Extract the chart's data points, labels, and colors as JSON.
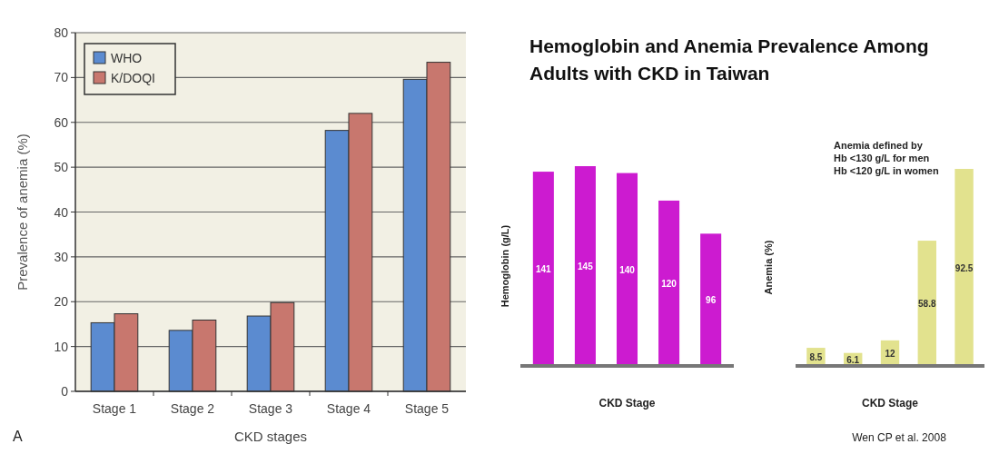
{
  "chart_data": [
    {
      "type": "bar",
      "categories": [
        "Stage 1",
        "Stage 2",
        "Stage 3",
        "Stage 4",
        "Stage 5"
      ],
      "xlabel": "CKD stages",
      "ylabel": "Prevalence of anemia (%)",
      "ylim": [
        0,
        80
      ],
      "yticks": [
        0,
        10,
        20,
        30,
        40,
        50,
        60,
        70,
        80
      ],
      "grid": "y",
      "legend": "top left",
      "annotations": [
        "A"
      ],
      "series": [
        {
          "name": "WHO",
          "color": "#5b8bd0",
          "values": [
            15.3,
            13.6,
            16.8,
            58.2,
            69.6
          ]
        },
        {
          "name": "K/DOQI",
          "color": "#c8776e",
          "values": [
            17.3,
            15.9,
            19.8,
            62,
            73.4
          ]
        }
      ]
    },
    {
      "type": "bar",
      "title": "Hemoglobin and Anemia Prevalence Among Adults with CKD in Taiwan",
      "categories": [
        null,
        null,
        null,
        null,
        null
      ],
      "xlabel": "CKD Stage",
      "ylabel": "Hemoglobin (g/L)",
      "data_labels": true,
      "tick_labels": false,
      "series": [
        {
          "color": "#cc1bd0",
          "values": [
            141,
            145,
            140,
            120,
            96
          ]
        }
      ]
    },
    {
      "type": "bar",
      "categories": [
        null,
        null,
        null,
        null,
        null
      ],
      "xlabel": "CKD Stage",
      "ylabel": "Anemia (%)",
      "data_labels": true,
      "tick_labels": false,
      "annotations": [
        "Anemia defined by\nHb <130 g/L for men\nHb <120 g/L in women",
        "Wen CP et al. 2008"
      ],
      "series": [
        {
          "color": "#e2e28e",
          "values": [
            8.5,
            6.1,
            12,
            58.8,
            92.5
          ]
        }
      ]
    }
  ]
}
